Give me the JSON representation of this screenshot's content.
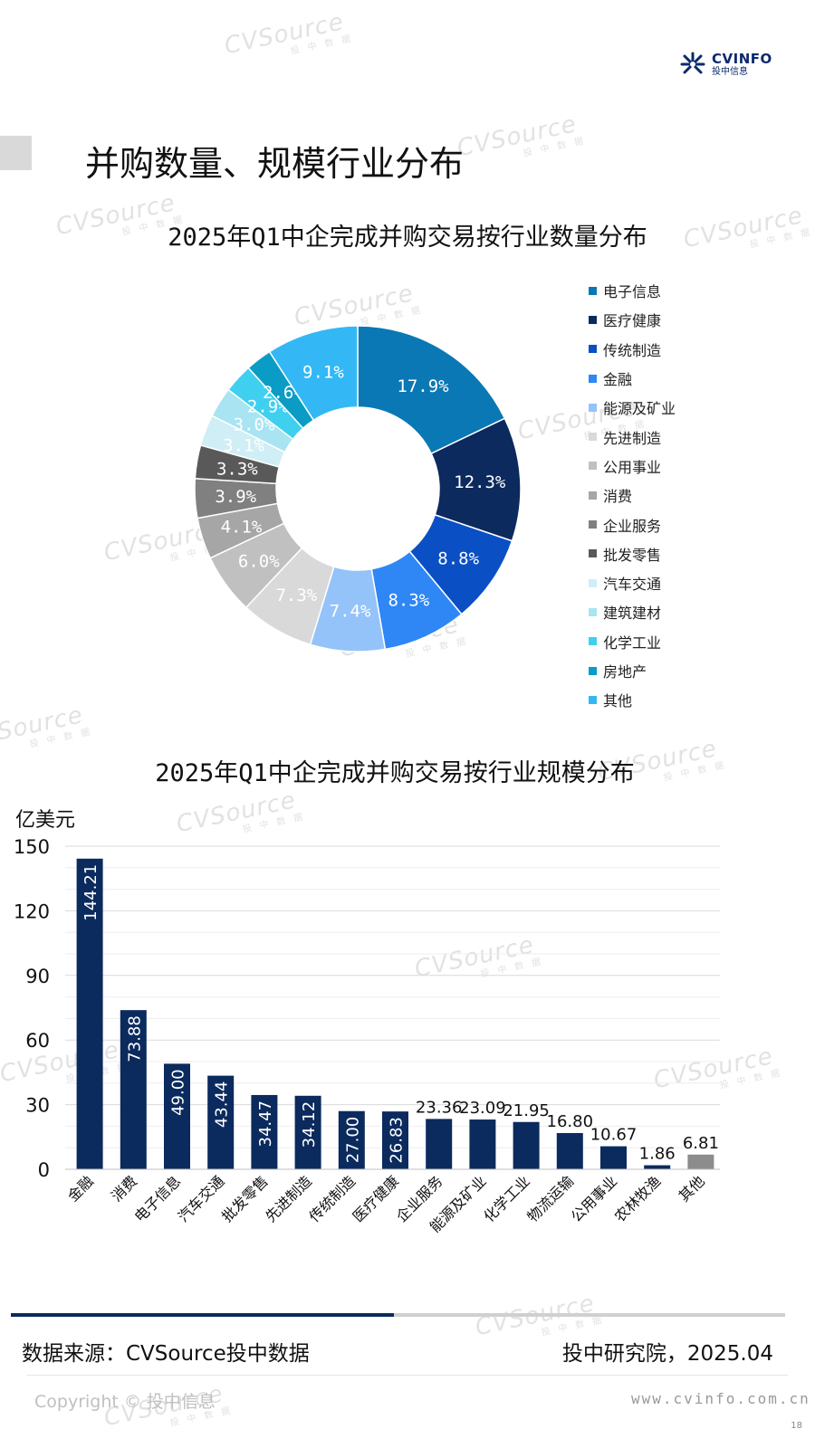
{
  "header": {
    "logo_main": "CVINFO",
    "logo_sub": "投中信息",
    "page_title": "并购数量、规模行业分布"
  },
  "watermark": {
    "brand": "CVSource",
    "sub": "投 中 数 据"
  },
  "colors": {
    "navy": "#0b2a5e",
    "gray_bar": "#8c8c8c",
    "accent": "#1f77b4"
  },
  "chart_data": [
    {
      "type": "pie",
      "donut": true,
      "title": "2025年Q1中企完成并购交易按行业数量分布",
      "legend_position": "right",
      "unit": "%",
      "slices": [
        {
          "label": "电子信息",
          "value": 17.9,
          "display": "17.9%",
          "color": "#0a78b4"
        },
        {
          "label": "医疗健康",
          "value": 12.3,
          "display": "12.3%",
          "color": "#0c2a5e"
        },
        {
          "label": "传统制造",
          "value": 8.8,
          "display": "8.8%",
          "color": "#0b4fc4"
        },
        {
          "label": "金融",
          "value": 8.3,
          "display": "8.3%",
          "color": "#2f86f5"
        },
        {
          "label": "能源及矿业",
          "value": 7.4,
          "display": "7.4%",
          "color": "#94c3fa"
        },
        {
          "label": "先进制造",
          "value": 7.3,
          "display": "7.3%",
          "color": "#d9d9d9"
        },
        {
          "label": "公用事业",
          "value": 6.0,
          "display": "6.0%",
          "color": "#c0c0c0"
        },
        {
          "label": "消费",
          "value": 4.1,
          "display": "4.1%",
          "color": "#a6a6a6"
        },
        {
          "label": "企业服务",
          "value": 3.9,
          "display": "3.9%",
          "color": "#808080"
        },
        {
          "label": "批发零售",
          "value": 3.3,
          "display": "3.3%",
          "color": "#595959"
        },
        {
          "label": "汽车交通",
          "value": 3.1,
          "display": "3.1%",
          "color": "#cfeef6"
        },
        {
          "label": "建筑建材",
          "value": 3.0,
          "display": "3.0%",
          "color": "#a8e4f2"
        },
        {
          "label": "化学工业",
          "value": 2.9,
          "display": "2.9%",
          "color": "#3fd0f0"
        },
        {
          "label": "房地产",
          "value": 2.6,
          "display": "2.6%",
          "color": "#0a9cc4"
        },
        {
          "label": "其他",
          "value": 9.1,
          "display": "9.1%",
          "color": "#33b8f5"
        }
      ]
    },
    {
      "type": "bar",
      "title": "2025年Q1中企完成并购交易按行业规模分布",
      "ylabel": "亿美元",
      "ylim": [
        0,
        150
      ],
      "yticks": [
        0,
        30,
        60,
        90,
        120,
        150
      ],
      "grid": true,
      "categories": [
        "金融",
        "消费",
        "电子信息",
        "汽车交通",
        "批发零售",
        "先进制造",
        "传统制造",
        "医疗健康",
        "企业服务",
        "能源及矿业",
        "化学工业",
        "物流运输",
        "公用事业",
        "农林牧渔",
        "其他"
      ],
      "values": [
        144.21,
        73.88,
        49.0,
        43.44,
        34.47,
        34.12,
        27.0,
        26.83,
        23.36,
        23.09,
        21.95,
        16.8,
        10.67,
        1.86,
        6.81
      ],
      "labels": [
        "144.21",
        "73.88",
        "49.00",
        "43.44",
        "34.47",
        "34.12",
        "27.00",
        "26.83",
        "23.36",
        "23.09",
        "21.95",
        "16.80",
        "10.67",
        "1.86",
        "6.81"
      ]
    }
  ],
  "footer": {
    "source": "数据来源：CVSource投中数据",
    "org_date": "投中研究院，2025.04",
    "copyright": "Copyright © 投中信息",
    "website": "www.cvinfo.com.cn",
    "page_number": "18"
  }
}
